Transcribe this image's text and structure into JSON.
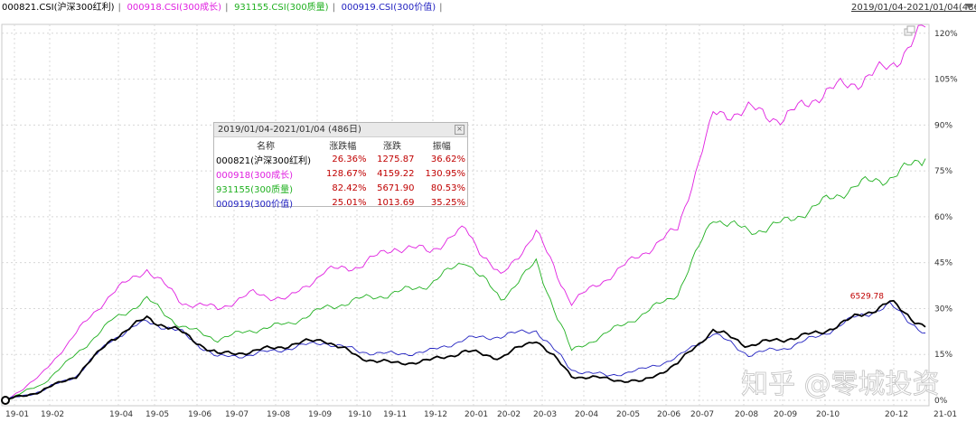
{
  "header": {
    "legend": [
      {
        "label": "000821.CSI(沪深300红利)",
        "color": "#000000"
      },
      {
        "label": "000918.CSI(300成长)",
        "color": "#e020e0"
      },
      {
        "label": "931155.CSI(300质量)",
        "color": "#20b020"
      },
      {
        "label": "000919.CSI(300价值)",
        "color": "#2020c0"
      }
    ],
    "range_label": "2019/01/04-2021/01/04(486日)"
  },
  "info_panel": {
    "title": "2019/01/04-2021/01/04 (486日)",
    "columns": [
      "名称",
      "涨跌幅",
      "涨跌",
      "振幅"
    ],
    "rows": [
      {
        "name": "000821(沪深300红利)",
        "pct": "26.36%",
        "chg": "1275.87",
        "amp": "36.62%",
        "color": "#000000"
      },
      {
        "name": "000918(300成长)",
        "pct": "128.67%",
        "chg": "4159.22",
        "amp": "130.95%",
        "color": "#e020e0"
      },
      {
        "name": "931155(300质量)",
        "pct": "82.42%",
        "chg": "5671.90",
        "amp": "80.53%",
        "color": "#20b020"
      },
      {
        "name": "000919(300价值)",
        "pct": "25.01%",
        "chg": "1013.69",
        "amp": "35.25%",
        "color": "#2020c0"
      }
    ]
  },
  "watermark": "知乎 @零城投资",
  "chart_data": {
    "type": "line",
    "x_ticks": [
      "19-01",
      "19-02",
      "19-04",
      "19-05",
      "19-06",
      "19-07",
      "19-08",
      "19-09",
      "19-10",
      "19-11",
      "19-12",
      "20-01",
      "20-02",
      "20-03",
      "20-04",
      "20-05",
      "20-06",
      "20-07",
      "20-08",
      "20-09",
      "20-10",
      "20-12",
      "21-01"
    ],
    "y_ticks": [
      "0%",
      "15%",
      "30%",
      "45%",
      "60%",
      "75%",
      "90%",
      "105%",
      "120%"
    ],
    "ylim": [
      0,
      122
    ],
    "annotation": {
      "text": "6529.78",
      "series": 0,
      "index": 25
    },
    "series": [
      {
        "name": "000821.CSI(沪深300红利)",
        "color": "#000000",
        "values": [
          0,
          3,
          8,
          20,
          27,
          22,
          15,
          16,
          18,
          20,
          14,
          12,
          13,
          16,
          14,
          20,
          8,
          7,
          6,
          12,
          23,
          18,
          20,
          22,
          27,
          32,
          24
        ]
      },
      {
        "name": "000918.CSI(300成长)",
        "color": "#e020e0",
        "values": [
          0,
          8,
          22,
          35,
          43,
          32,
          30,
          35,
          33,
          42,
          44,
          50,
          49,
          56,
          40,
          55,
          32,
          40,
          48,
          56,
          93,
          95,
          92,
          100,
          104,
          109,
          122
        ]
      },
      {
        "name": "931155.CSI(300质量)",
        "color": "#20b020",
        "values": [
          0,
          5,
          15,
          26,
          33,
          24,
          20,
          23,
          25,
          30,
          33,
          35,
          38,
          46,
          33,
          45,
          16,
          22,
          28,
          35,
          60,
          55,
          58,
          64,
          70,
          73,
          79
        ]
      },
      {
        "name": "000919.CSI(300价值)",
        "color": "#2020c0",
        "values": [
          0,
          3,
          8,
          20,
          26,
          22,
          14,
          15,
          17,
          19,
          16,
          15,
          16,
          20,
          21,
          23,
          10,
          8,
          10,
          14,
          22,
          15,
          17,
          21,
          27,
          31,
          22
        ]
      }
    ]
  }
}
